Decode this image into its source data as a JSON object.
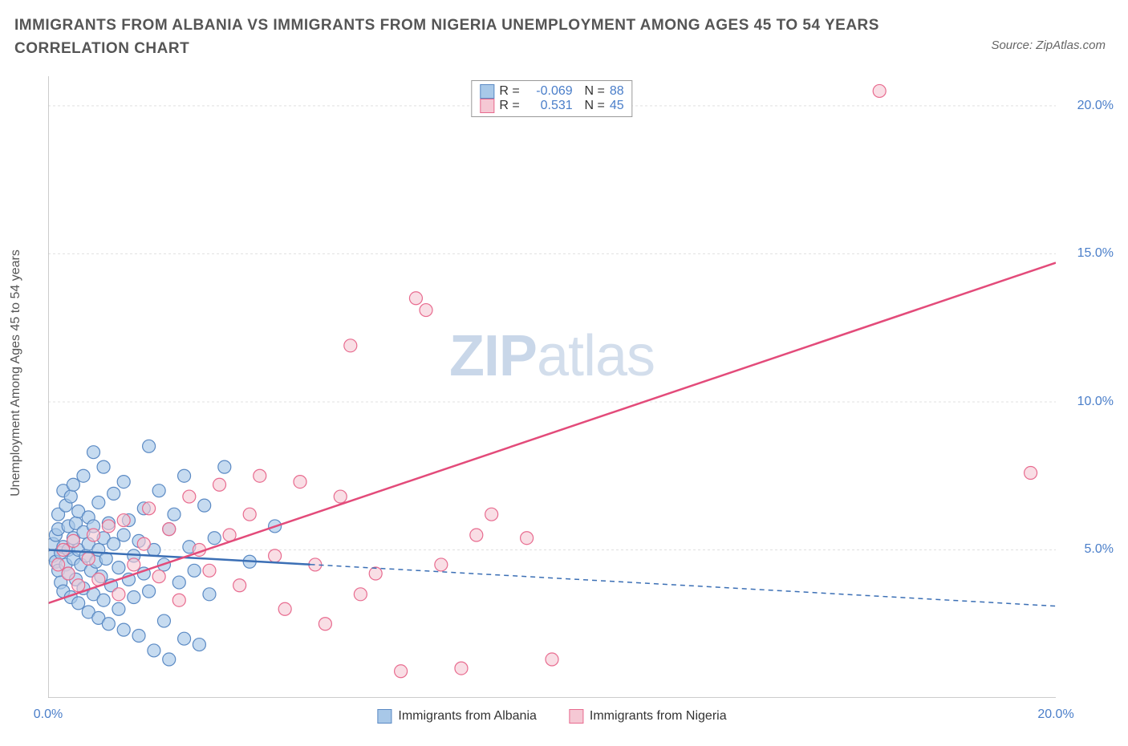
{
  "title": "IMMIGRANTS FROM ALBANIA VS IMMIGRANTS FROM NIGERIA UNEMPLOYMENT AMONG AGES 45 TO 54 YEARS CORRELATION CHART",
  "source": "Source: ZipAtlas.com",
  "ylabel": "Unemployment Among Ages 45 to 54 years",
  "watermark_bold": "ZIP",
  "watermark_light": "atlas",
  "chart": {
    "type": "scatter",
    "xlim": [
      0,
      20
    ],
    "ylim": [
      0,
      21
    ],
    "xtick_labels": {
      "0": "0.0%",
      "20": "20.0%"
    },
    "xtick_positions": [
      0,
      2,
      4,
      6,
      8,
      10,
      12,
      14,
      16,
      18,
      20
    ],
    "ytick_labels": {
      "5": "5.0%",
      "10": "10.0%",
      "15": "15.0%",
      "20": "20.0%"
    },
    "ytick_positions": [
      5,
      10,
      15,
      20
    ],
    "grid_color": "#e0e0e0",
    "axis_color": "#bbbbbb",
    "background_color": "#ffffff",
    "series": [
      {
        "name": "Immigrants from Albania",
        "marker_fill": "#a8c8e8",
        "marker_stroke": "#5b8ac4",
        "marker_opacity": 0.65,
        "marker_radius": 8,
        "line_color": "#3b6fb5",
        "line_width": 2.5,
        "r": -0.069,
        "n": 88,
        "solid_xmax": 5.2,
        "trend": {
          "x1": 0,
          "y1": 5.0,
          "x2": 20,
          "y2": 3.1
        },
        "points": [
          [
            0.1,
            4.8
          ],
          [
            0.1,
            5.2
          ],
          [
            0.15,
            4.6
          ],
          [
            0.15,
            5.5
          ],
          [
            0.2,
            4.3
          ],
          [
            0.2,
            5.7
          ],
          [
            0.2,
            6.2
          ],
          [
            0.25,
            3.9
          ],
          [
            0.25,
            4.9
          ],
          [
            0.3,
            5.1
          ],
          [
            0.3,
            7.0
          ],
          [
            0.3,
            3.6
          ],
          [
            0.35,
            4.5
          ],
          [
            0.35,
            6.5
          ],
          [
            0.4,
            5.0
          ],
          [
            0.4,
            4.2
          ],
          [
            0.4,
            5.8
          ],
          [
            0.45,
            3.4
          ],
          [
            0.45,
            6.8
          ],
          [
            0.5,
            4.7
          ],
          [
            0.5,
            5.4
          ],
          [
            0.5,
            7.2
          ],
          [
            0.55,
            4.0
          ],
          [
            0.55,
            5.9
          ],
          [
            0.6,
            3.2
          ],
          [
            0.6,
            5.0
          ],
          [
            0.6,
            6.3
          ],
          [
            0.65,
            4.5
          ],
          [
            0.7,
            3.7
          ],
          [
            0.7,
            5.6
          ],
          [
            0.7,
            7.5
          ],
          [
            0.75,
            4.8
          ],
          [
            0.8,
            2.9
          ],
          [
            0.8,
            5.2
          ],
          [
            0.8,
            6.1
          ],
          [
            0.85,
            4.3
          ],
          [
            0.9,
            3.5
          ],
          [
            0.9,
            5.8
          ],
          [
            0.9,
            8.3
          ],
          [
            0.95,
            4.6
          ],
          [
            1.0,
            2.7
          ],
          [
            1.0,
            5.0
          ],
          [
            1.0,
            6.6
          ],
          [
            1.05,
            4.1
          ],
          [
            1.1,
            3.3
          ],
          [
            1.1,
            5.4
          ],
          [
            1.1,
            7.8
          ],
          [
            1.15,
            4.7
          ],
          [
            1.2,
            2.5
          ],
          [
            1.2,
            5.9
          ],
          [
            1.25,
            3.8
          ],
          [
            1.3,
            5.2
          ],
          [
            1.3,
            6.9
          ],
          [
            1.4,
            4.4
          ],
          [
            1.4,
            3.0
          ],
          [
            1.5,
            5.5
          ],
          [
            1.5,
            2.3
          ],
          [
            1.5,
            7.3
          ],
          [
            1.6,
            4.0
          ],
          [
            1.6,
            6.0
          ],
          [
            1.7,
            4.8
          ],
          [
            1.7,
            3.4
          ],
          [
            1.8,
            5.3
          ],
          [
            1.8,
            2.1
          ],
          [
            1.9,
            6.4
          ],
          [
            1.9,
            4.2
          ],
          [
            2.0,
            8.5
          ],
          [
            2.0,
            3.6
          ],
          [
            2.1,
            5.0
          ],
          [
            2.1,
            1.6
          ],
          [
            2.2,
            7.0
          ],
          [
            2.3,
            4.5
          ],
          [
            2.3,
            2.6
          ],
          [
            2.4,
            5.7
          ],
          [
            2.4,
            1.3
          ],
          [
            2.5,
            6.2
          ],
          [
            2.6,
            3.9
          ],
          [
            2.7,
            7.5
          ],
          [
            2.7,
            2.0
          ],
          [
            2.8,
            5.1
          ],
          [
            2.9,
            4.3
          ],
          [
            3.0,
            1.8
          ],
          [
            3.1,
            6.5
          ],
          [
            3.2,
            3.5
          ],
          [
            3.3,
            5.4
          ],
          [
            3.5,
            7.8
          ],
          [
            4.0,
            4.6
          ],
          [
            4.5,
            5.8
          ]
        ]
      },
      {
        "name": "Immigrants from Nigeria",
        "marker_fill": "#f5c8d4",
        "marker_stroke": "#e86b8f",
        "marker_opacity": 0.6,
        "marker_radius": 8,
        "line_color": "#e34b7a",
        "line_width": 2.5,
        "r": 0.531,
        "n": 45,
        "solid_xmax": 20,
        "trend": {
          "x1": 0,
          "y1": 3.2,
          "x2": 20,
          "y2": 14.7
        },
        "points": [
          [
            0.2,
            4.5
          ],
          [
            0.3,
            5.0
          ],
          [
            0.4,
            4.2
          ],
          [
            0.5,
            5.3
          ],
          [
            0.6,
            3.8
          ],
          [
            0.8,
            4.7
          ],
          [
            0.9,
            5.5
          ],
          [
            1.0,
            4.0
          ],
          [
            1.2,
            5.8
          ],
          [
            1.4,
            3.5
          ],
          [
            1.5,
            6.0
          ],
          [
            1.7,
            4.5
          ],
          [
            1.9,
            5.2
          ],
          [
            2.0,
            6.4
          ],
          [
            2.2,
            4.1
          ],
          [
            2.4,
            5.7
          ],
          [
            2.6,
            3.3
          ],
          [
            2.8,
            6.8
          ],
          [
            3.0,
            5.0
          ],
          [
            3.2,
            4.3
          ],
          [
            3.4,
            7.2
          ],
          [
            3.6,
            5.5
          ],
          [
            3.8,
            3.8
          ],
          [
            4.0,
            6.2
          ],
          [
            4.2,
            7.5
          ],
          [
            4.5,
            4.8
          ],
          [
            4.7,
            3.0
          ],
          [
            5.0,
            7.3
          ],
          [
            5.3,
            4.5
          ],
          [
            5.5,
            2.5
          ],
          [
            5.8,
            6.8
          ],
          [
            6.0,
            11.9
          ],
          [
            6.2,
            3.5
          ],
          [
            6.5,
            4.2
          ],
          [
            7.0,
            0.9
          ],
          [
            7.3,
            13.5
          ],
          [
            7.5,
            13.1
          ],
          [
            7.8,
            4.5
          ],
          [
            8.2,
            1.0
          ],
          [
            8.5,
            5.5
          ],
          [
            8.8,
            6.2
          ],
          [
            9.5,
            5.4
          ],
          [
            10.0,
            1.3
          ],
          [
            16.5,
            20.5
          ],
          [
            19.5,
            7.6
          ]
        ]
      }
    ]
  },
  "legend_bottom": [
    {
      "label": "Immigrants from Albania",
      "fill": "#a8c8e8",
      "stroke": "#5b8ac4"
    },
    {
      "label": "Immigrants from Nigeria",
      "fill": "#f5c8d4",
      "stroke": "#e86b8f"
    }
  ],
  "colors": {
    "title": "#555555",
    "tick": "#4a7ec9",
    "legend_r": "#4a7ec9"
  }
}
